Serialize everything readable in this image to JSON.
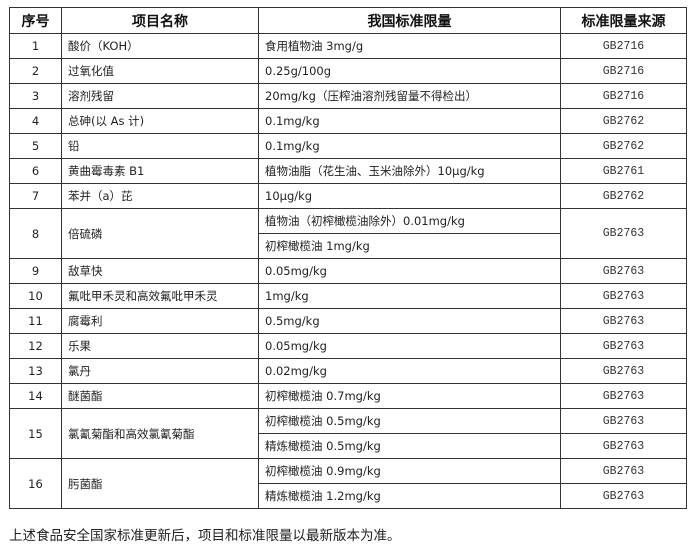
{
  "table": {
    "headers": [
      "序号",
      "项目名称",
      "我国标准限量",
      "标准限量来源"
    ],
    "rows": [
      {
        "no": "1",
        "name": "酸价（KOH）",
        "limits": [
          {
            "text": "食用植物油 3mg/g",
            "source": "GB2716"
          }
        ]
      },
      {
        "no": "2",
        "name": "过氧化值",
        "limits": [
          {
            "text": "0.25g/100g",
            "source": "GB2716"
          }
        ]
      },
      {
        "no": "3",
        "name": "溶剂残留",
        "limits": [
          {
            "text": "20mg/kg（压榨油溶剂残留量不得检出）",
            "source": "GB2716"
          }
        ]
      },
      {
        "no": "4",
        "name": "总砷(以 As 计)",
        "limits": [
          {
            "text": "0.1mg/kg",
            "source": "GB2762"
          }
        ]
      },
      {
        "no": "5",
        "name": "铅",
        "limits": [
          {
            "text": "0.1mg/kg",
            "source": "GB2762"
          }
        ]
      },
      {
        "no": "6",
        "name": "黄曲霉毒素 B1",
        "limits": [
          {
            "text": "植物油脂（花生油、玉米油除外）10μg/kg",
            "source": "GB2761"
          }
        ]
      },
      {
        "no": "7",
        "name": "苯并（a）芘",
        "limits": [
          {
            "text": "10μg/kg",
            "source": "GB2762"
          }
        ]
      },
      {
        "no": "8",
        "name": "倍硫磷",
        "merged_source": "GB2763",
        "limits": [
          {
            "text": "植物油（初榨橄榄油除外）0.01mg/kg"
          },
          {
            "text": "初榨橄榄油 1mg/kg"
          }
        ]
      },
      {
        "no": "9",
        "name": "敌草快",
        "limits": [
          {
            "text": "0.05mg/kg",
            "source": "GB2763"
          }
        ]
      },
      {
        "no": "10",
        "name": "氟吡甲禾灵和高效氟吡甲禾灵",
        "limits": [
          {
            "text": "1mg/kg",
            "source": "GB2763"
          }
        ]
      },
      {
        "no": "11",
        "name": "腐霉利",
        "limits": [
          {
            "text": "0.5mg/kg",
            "source": "GB2763"
          }
        ]
      },
      {
        "no": "12",
        "name": "乐果",
        "limits": [
          {
            "text": "0.05mg/kg",
            "source": "GB2763"
          }
        ]
      },
      {
        "no": "13",
        "name": "氯丹",
        "limits": [
          {
            "text": "0.02mg/kg",
            "source": "GB2763"
          }
        ]
      },
      {
        "no": "14",
        "name": "醚菌酯",
        "limits": [
          {
            "text": "初榨橄榄油 0.7mg/kg",
            "source": "GB2763"
          }
        ]
      },
      {
        "no": "15",
        "name": "氯氰菊酯和高效氯氰菊酯",
        "limits": [
          {
            "text": "初榨橄榄油 0.5mg/kg",
            "source": "GB2763"
          },
          {
            "text": "精炼橄榄油 0.5mg/kg",
            "source": "GB2763"
          }
        ]
      },
      {
        "no": "16",
        "name": "肟菌酯",
        "limits": [
          {
            "text": "初榨橄榄油 0.9mg/kg",
            "source": "GB2763"
          },
          {
            "text": "精炼橄榄油 1.2mg/kg",
            "source": "GB2763"
          }
        ]
      }
    ]
  },
  "footnote": "上述食品安全国家标准更新后，项目和标准限量以最新版本为准。"
}
